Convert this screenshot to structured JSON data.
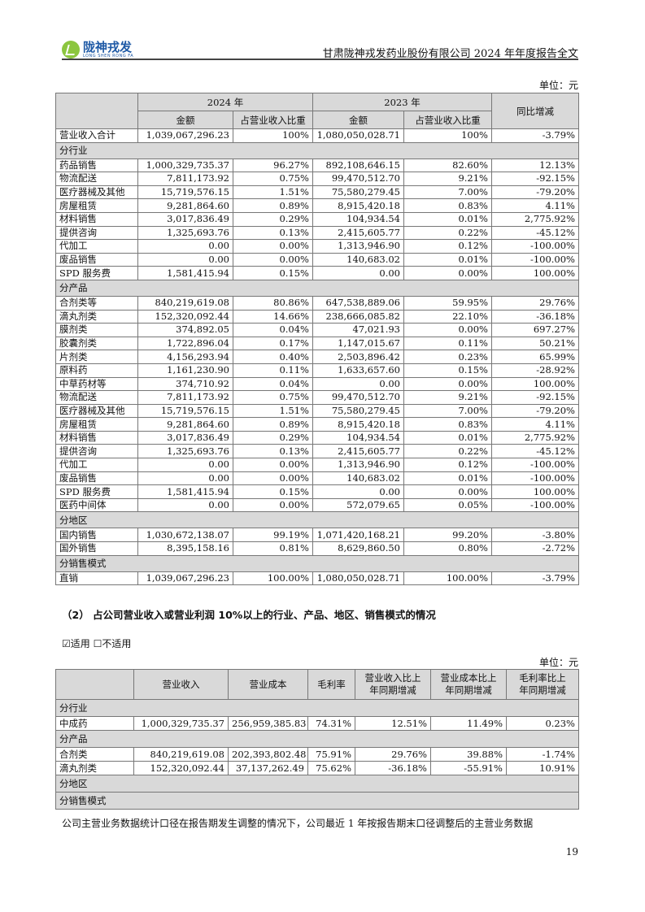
{
  "header": {
    "logo_text": "陇神戎发",
    "logo_sub": "LONG SHEN RONG FA",
    "title": "甘肃陇神戎发药业股份有限公司 2024 年年度报告全文"
  },
  "table1": {
    "unit": "单位：元",
    "year_2024": "2024 年",
    "year_2023": "2023 年",
    "yoy": "同比增减",
    "amount": "金额",
    "ratio": "占营业收入比重",
    "rows": [
      {
        "type": "row",
        "cells": [
          "营业收入合计",
          "1,039,067,296.23",
          "100%",
          "1,080,050,028.71",
          "100%",
          "-3.79%"
        ]
      },
      {
        "type": "section",
        "label": "分行业"
      },
      {
        "type": "row",
        "cells": [
          "药品销售",
          "1,000,329,735.37",
          "96.27%",
          "892,108,646.15",
          "82.60%",
          "12.13%"
        ]
      },
      {
        "type": "row",
        "cells": [
          "物流配送",
          "7,811,173.92",
          "0.75%",
          "99,470,512.70",
          "9.21%",
          "-92.15%"
        ]
      },
      {
        "type": "row",
        "cells": [
          "医疗器械及其他",
          "15,719,576.15",
          "1.51%",
          "75,580,279.45",
          "7.00%",
          "-79.20%"
        ]
      },
      {
        "type": "row",
        "cells": [
          "房屋租赁",
          "9,281,864.60",
          "0.89%",
          "8,915,420.18",
          "0.83%",
          "4.11%"
        ]
      },
      {
        "type": "row",
        "cells": [
          "材料销售",
          "3,017,836.49",
          "0.29%",
          "104,934.54",
          "0.01%",
          "2,775.92%"
        ]
      },
      {
        "type": "row",
        "cells": [
          "提供咨询",
          "1,325,693.76",
          "0.13%",
          "2,415,605.77",
          "0.22%",
          "-45.12%"
        ]
      },
      {
        "type": "row",
        "cells": [
          "代加工",
          "0.00",
          "0.00%",
          "1,313,946.90",
          "0.12%",
          "-100.00%"
        ]
      },
      {
        "type": "row",
        "cells": [
          "废品销售",
          "0.00",
          "0.00%",
          "140,683.02",
          "0.01%",
          "-100.00%"
        ]
      },
      {
        "type": "row",
        "cells": [
          "SPD 服务费",
          "1,581,415.94",
          "0.15%",
          "0.00",
          "0.00%",
          "100.00%"
        ]
      },
      {
        "type": "section",
        "label": "分产品"
      },
      {
        "type": "row",
        "cells": [
          "合剂类等",
          "840,219,619.08",
          "80.86%",
          "647,538,889.06",
          "59.95%",
          "29.76%"
        ]
      },
      {
        "type": "row",
        "cells": [
          "滴丸剂类",
          "152,320,092.44",
          "14.66%",
          "238,666,085.82",
          "22.10%",
          "-36.18%"
        ]
      },
      {
        "type": "row",
        "cells": [
          "膜剂类",
          "374,892.05",
          "0.04%",
          "47,021.93",
          "0.00%",
          "697.27%"
        ]
      },
      {
        "type": "row",
        "cells": [
          "胶囊剂类",
          "1,722,896.04",
          "0.17%",
          "1,147,015.67",
          "0.11%",
          "50.21%"
        ]
      },
      {
        "type": "row",
        "cells": [
          "片剂类",
          "4,156,293.94",
          "0.40%",
          "2,503,896.42",
          "0.23%",
          "65.99%"
        ]
      },
      {
        "type": "row",
        "cells": [
          "原料药",
          "1,161,230.90",
          "0.11%",
          "1,633,657.60",
          "0.15%",
          "-28.92%"
        ]
      },
      {
        "type": "row",
        "cells": [
          "中草药材等",
          "374,710.92",
          "0.04%",
          "0.00",
          "0.00%",
          "100.00%"
        ]
      },
      {
        "type": "row",
        "cells": [
          "物流配送",
          "7,811,173.92",
          "0.75%",
          "99,470,512.70",
          "9.21%",
          "-92.15%"
        ]
      },
      {
        "type": "row",
        "cells": [
          "医疗器械及其他",
          "15,719,576.15",
          "1.51%",
          "75,580,279.45",
          "7.00%",
          "-79.20%"
        ]
      },
      {
        "type": "row",
        "cells": [
          "房屋租赁",
          "9,281,864.60",
          "0.89%",
          "8,915,420.18",
          "0.83%",
          "4.11%"
        ]
      },
      {
        "type": "row",
        "cells": [
          "材料销售",
          "3,017,836.49",
          "0.29%",
          "104,934.54",
          "0.01%",
          "2,775.92%"
        ]
      },
      {
        "type": "row",
        "cells": [
          "提供咨询",
          "1,325,693.76",
          "0.13%",
          "2,415,605.77",
          "0.22%",
          "-45.12%"
        ]
      },
      {
        "type": "row",
        "cells": [
          "代加工",
          "0.00",
          "0.00%",
          "1,313,946.90",
          "0.12%",
          "-100.00%"
        ]
      },
      {
        "type": "row",
        "cells": [
          "废品销售",
          "0.00",
          "0.00%",
          "140,683.02",
          "0.01%",
          "-100.00%"
        ]
      },
      {
        "type": "row",
        "cells": [
          "SPD 服务费",
          "1,581,415.94",
          "0.15%",
          "0.00",
          "0.00%",
          "100.00%"
        ]
      },
      {
        "type": "row",
        "cells": [
          "医药中间体",
          "0.00",
          "0.00%",
          "572,079.65",
          "0.05%",
          "-100.00%"
        ]
      },
      {
        "type": "section",
        "label": "分地区"
      },
      {
        "type": "row",
        "cells": [
          "国内销售",
          "1,030,672,138.07",
          "99.19%",
          "1,071,420,168.21",
          "99.20%",
          "-3.80%"
        ]
      },
      {
        "type": "row",
        "cells": [
          "国外销售",
          "8,395,158.16",
          "0.81%",
          "8,629,860.50",
          "0.80%",
          "-2.72%"
        ]
      },
      {
        "type": "section",
        "label": "分销售模式"
      },
      {
        "type": "row",
        "cells": [
          "直销",
          "1,039,067,296.23",
          "100.00%",
          "1,080,050,028.71",
          "100.00%",
          "-3.79%"
        ]
      }
    ]
  },
  "section2": {
    "title": "（2） 占公司营业收入或营业利润 10%以上的行业、产品、地区、销售模式的情况",
    "applicable": "☑适用 ☐不适用"
  },
  "table2": {
    "unit": "单位：元",
    "headers": [
      "",
      "营业收入",
      "营业成本",
      "毛利率",
      "营业收入比上年同期增减",
      "营业成本比上年同期增减",
      "毛利率比上年同期增减"
    ],
    "rows": [
      {
        "type": "section",
        "label": "分行业"
      },
      {
        "type": "row",
        "cells": [
          "中成药",
          "1,000,329,735.37",
          "256,959,385.83",
          "74.31%",
          "12.51%",
          "11.49%",
          "0.23%"
        ]
      },
      {
        "type": "section",
        "label": "分产品"
      },
      {
        "type": "row",
        "cells": [
          "合剂类",
          "840,219,619.08",
          "202,393,802.48",
          "75.91%",
          "29.76%",
          "39.88%",
          "-1.74%"
        ]
      },
      {
        "type": "row",
        "cells": [
          "滴丸剂类",
          "152,320,092.44",
          "37,137,262.49",
          "75.62%",
          "-36.18%",
          "-55.91%",
          "10.91%"
        ]
      },
      {
        "type": "section",
        "label": "分地区"
      },
      {
        "type": "section",
        "label": "分销售模式"
      }
    ]
  },
  "note": "公司主营业务数据统计口径在报告期发生调整的情况下，公司最近 1 年按报告期末口径调整后的主营业务数据",
  "page_number": "19"
}
